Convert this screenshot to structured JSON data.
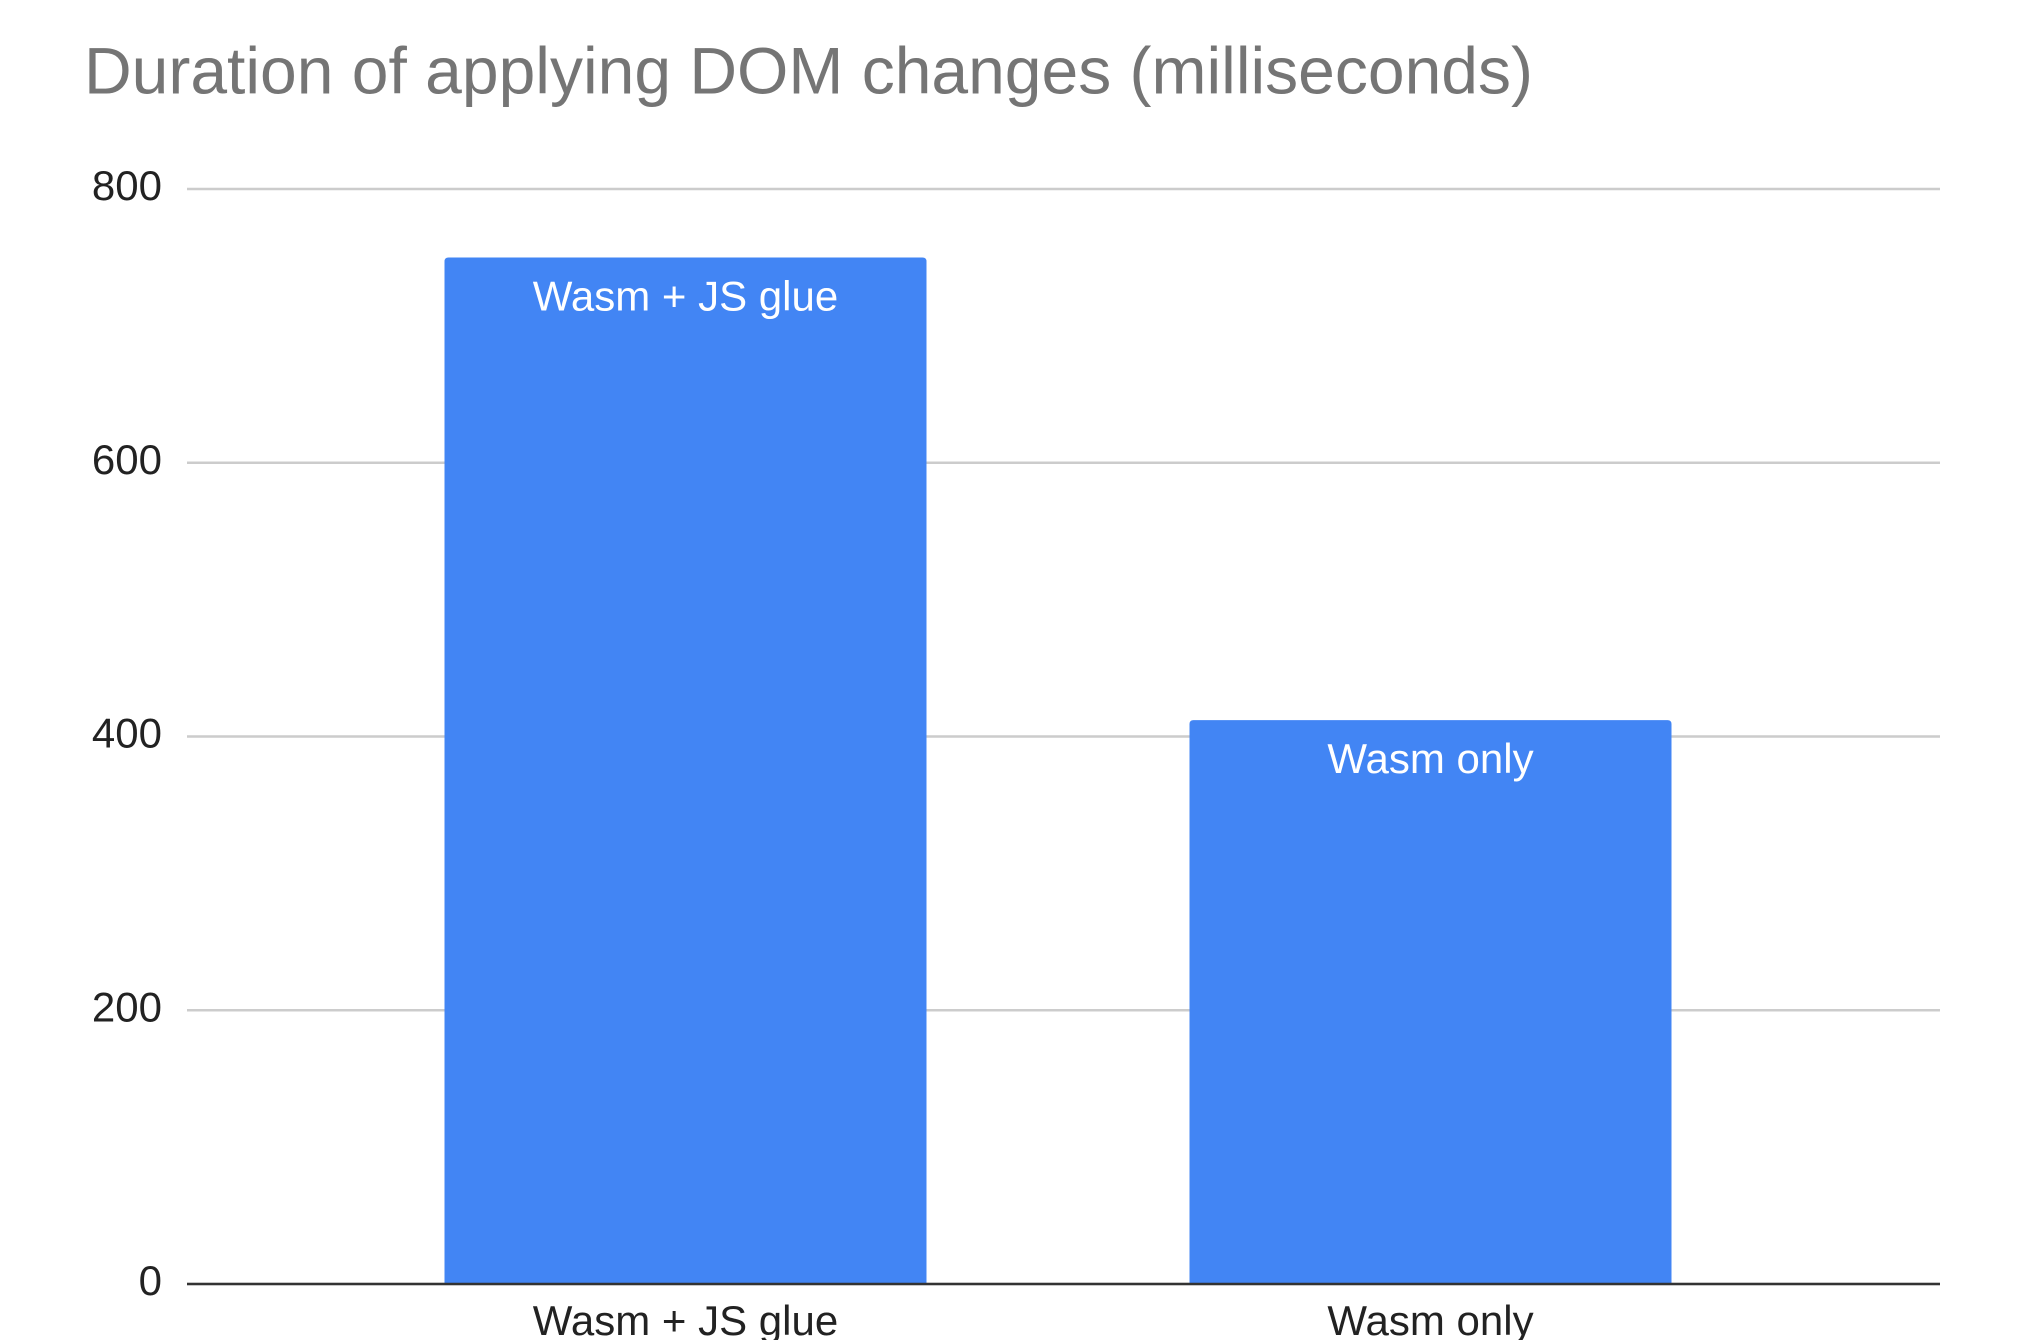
{
  "chart_data": {
    "type": "bar",
    "title": "Duration of applying DOM changes (milliseconds)",
    "categories": [
      "Wasm + JS glue",
      "Wasm only"
    ],
    "values": [
      750,
      412
    ],
    "color": "#4285f4",
    "ylim": [
      0,
      800
    ],
    "yticks": [
      0,
      200,
      400,
      600,
      800
    ],
    "grid": true
  }
}
